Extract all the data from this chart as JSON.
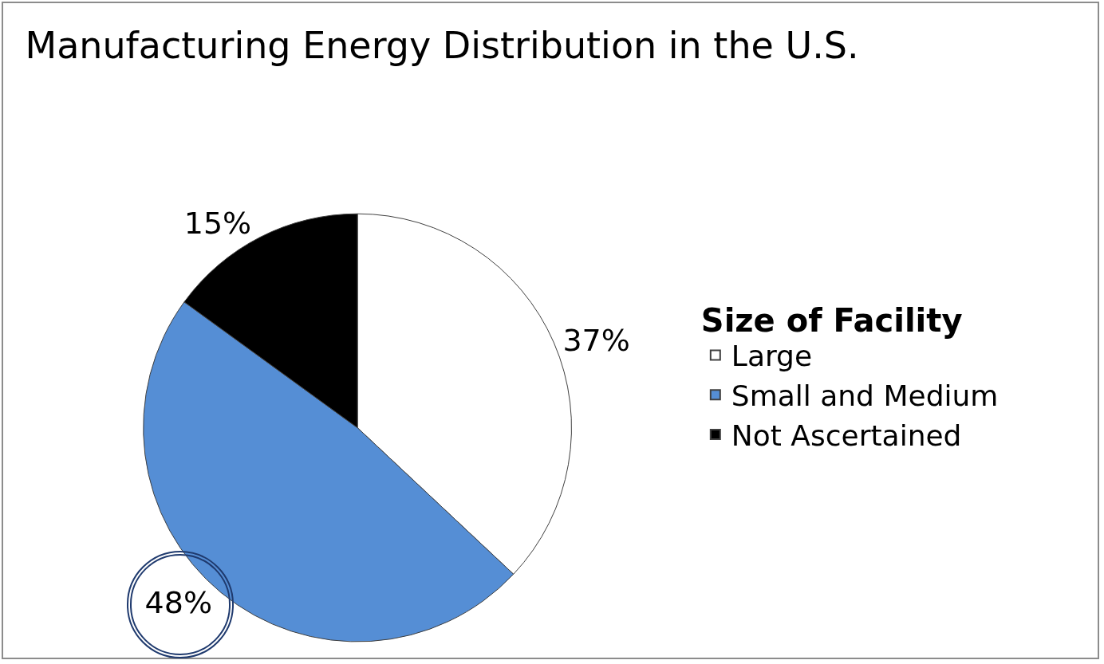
{
  "chart_data": {
    "type": "pie",
    "title": "Manufacturing Energy Distribution in the U.S.",
    "legend_title": "Size of Facility",
    "categories": [
      "Large",
      "Small and Medium",
      "Not Ascertained"
    ],
    "values": [
      37,
      48,
      15
    ],
    "colors": [
      "#ffffff",
      "#558ed5",
      "#000000"
    ],
    "value_labels": [
      "37%",
      "48%",
      "15%"
    ],
    "legend": "right"
  }
}
